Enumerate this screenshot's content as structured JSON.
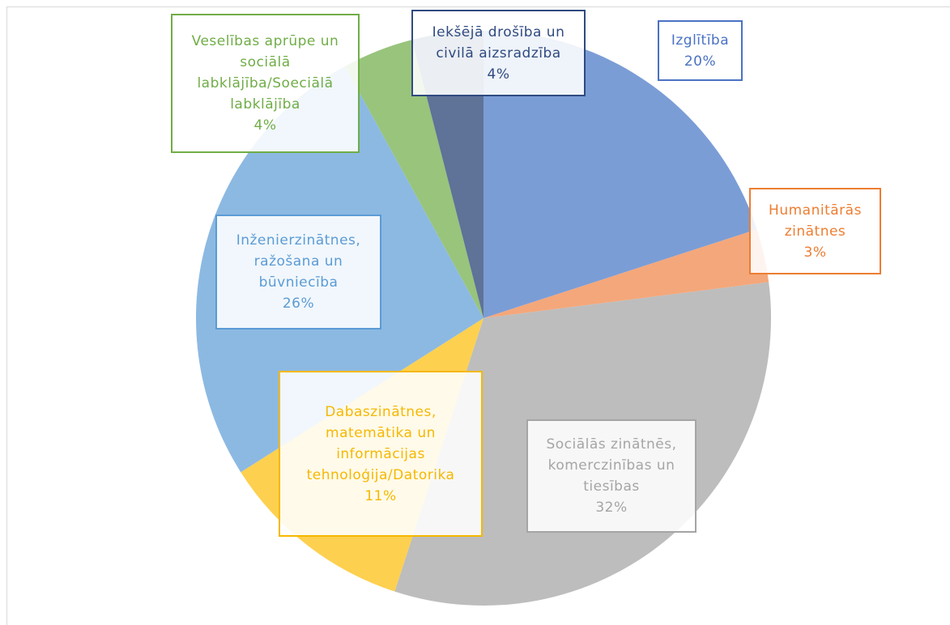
{
  "chart_data": {
    "type": "pie",
    "categories": [
      "Izglītība",
      "Humanitārās zinātnes",
      "Sociālās zinātnēs, komerczinības un tiesības",
      "Dabaszinātnes, matemātika un informācijas tehnoloģija/Datorika",
      "Inženierzinātnes, ražošana un būvniecība",
      "Veselības aprūpe un sociālā labklājība/Soeciālā labklājība",
      "Iekšējā drošība un civilā aizsradzība"
    ],
    "values": [
      20,
      3,
      32,
      11,
      26,
      4,
      4
    ],
    "value_labels": [
      "20%",
      "3%",
      "32%",
      "11%",
      "26%",
      "4%",
      "4%"
    ],
    "colors": [
      "#7b9dd6",
      "#f4a77a",
      "#bdbdbd",
      "#fdd04f",
      "#8cb9e2",
      "#98c47c",
      "#5f7297"
    ],
    "label_colors": [
      "#4a72c4",
      "#ed7d31",
      "#a5a5a5",
      "#f5b800",
      "#5b9bd5",
      "#70ad47",
      "#2f4a80"
    ]
  }
}
